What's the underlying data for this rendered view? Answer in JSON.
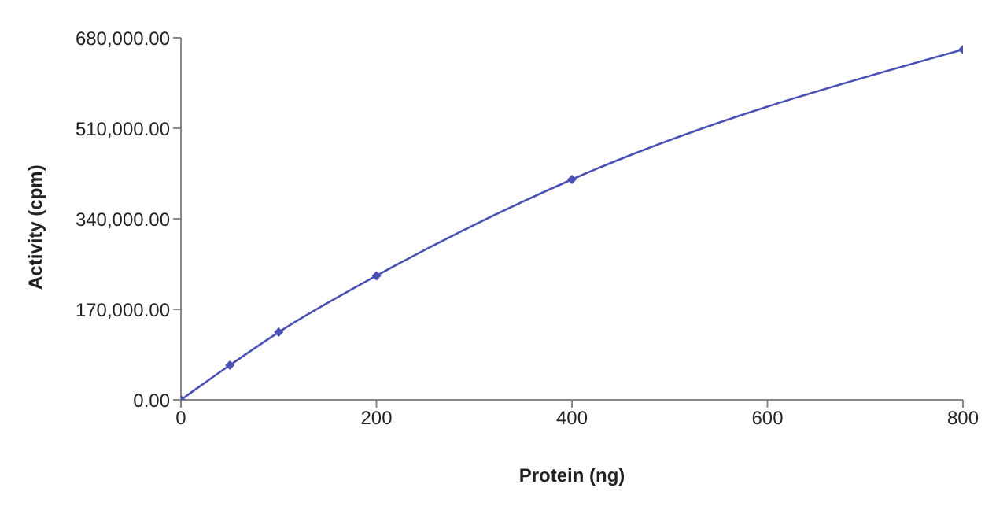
{
  "chart_data": {
    "type": "line",
    "xlabel": "Protein (ng)",
    "ylabel": "Activity (cpm)",
    "x": [
      0,
      50,
      100,
      200,
      400,
      800
    ],
    "series": [
      {
        "color": "#4a50b4",
        "values": [
          0,
          65000,
          127000,
          233000,
          414000,
          658000
        ]
      }
    ],
    "xlim": [
      0,
      800
    ],
    "xticks": [
      0,
      200,
      400,
      600,
      800
    ],
    "ylim": [
      0,
      680000
    ],
    "yticks": [
      {
        "value": 0,
        "label": "0.00"
      },
      {
        "value": 170000,
        "label": "170,000.00"
      },
      {
        "value": 340000,
        "label": "340,000.00"
      },
      {
        "value": 510000,
        "label": "510,000.00"
      },
      {
        "value": 680000,
        "label": "680,000.00"
      }
    ],
    "grid": false,
    "legend": false,
    "marker": "diamond",
    "line_style": "solid"
  }
}
